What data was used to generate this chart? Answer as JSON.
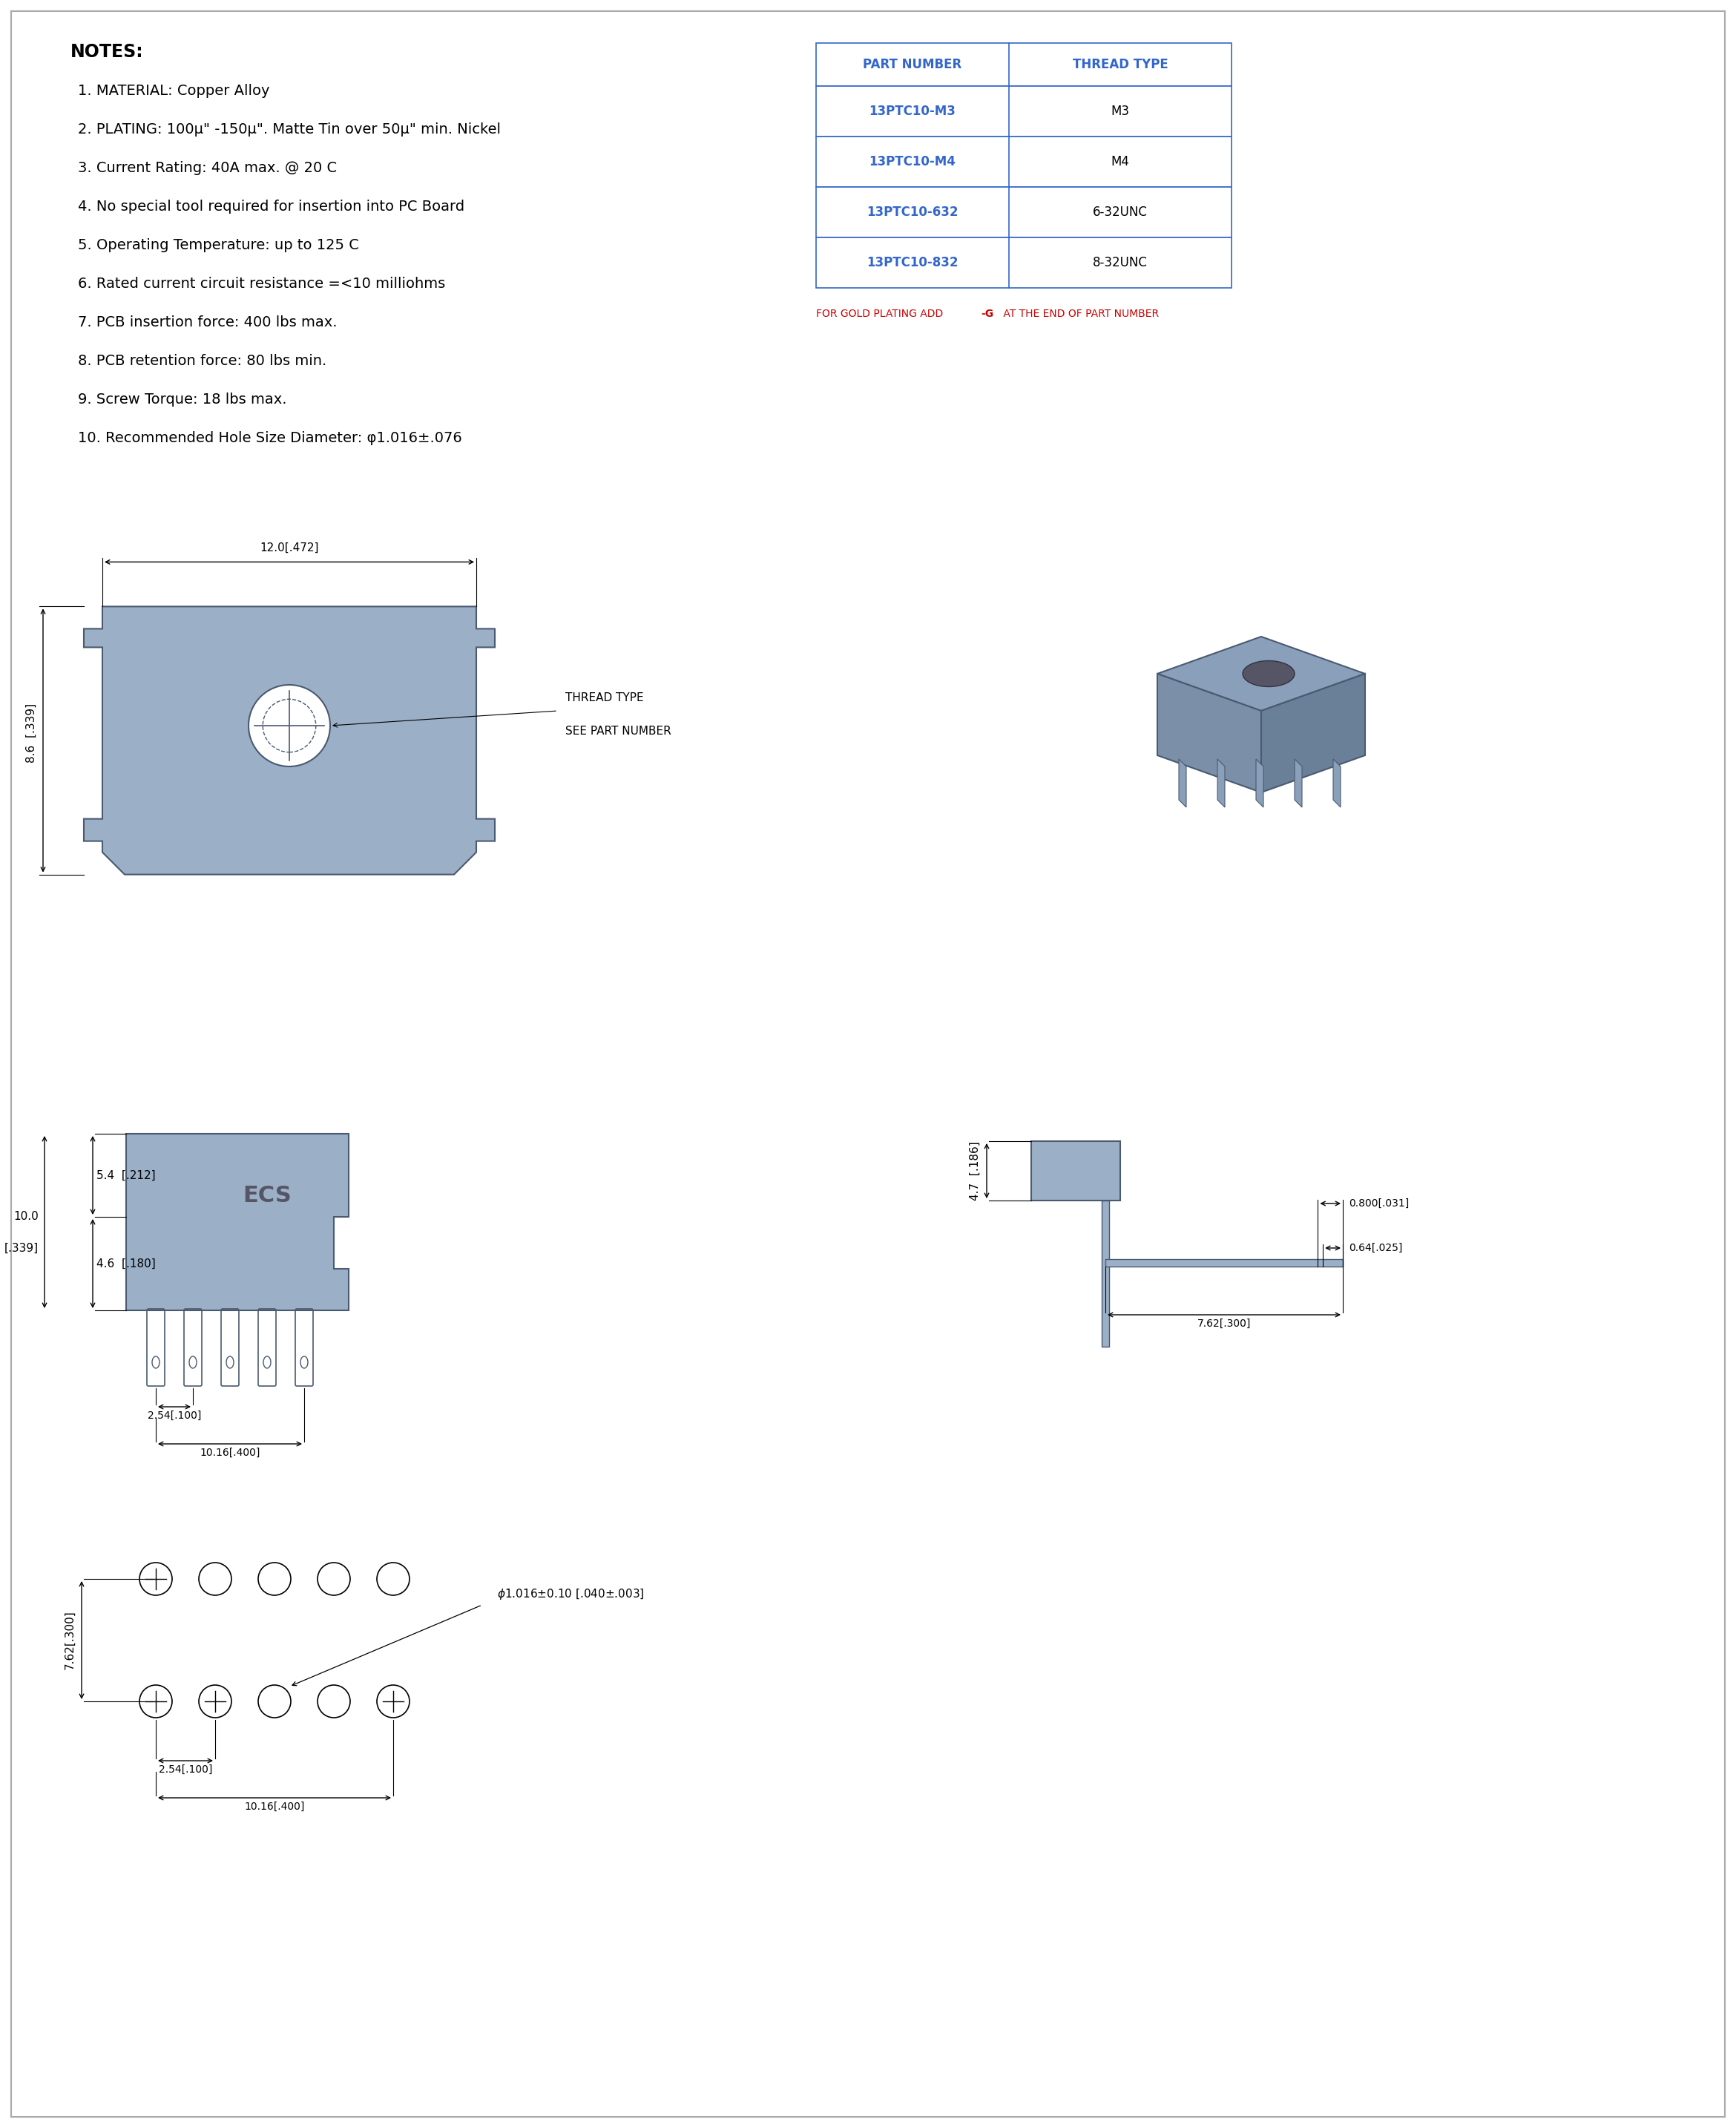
{
  "bg_color": "#ffffff",
  "notes_title": "NOTES:",
  "notes_lines": [
    "1. MATERIAL: Copper Alloy",
    "2. PLATING: 100μ\" -150μ\". Matte Tin over 50μ\" min. Nickel",
    "3. Current Rating: 40A max. @ 20 C",
    "4. No special tool required for insertion into PC Board",
    "5. Operating Temperature: up to 125 C",
    "6. Rated current circuit resistance =<10 milliohms",
    "7. PCB insertion force: 400 lbs max.",
    "8. PCB retention force: 80 lbs min.",
    "9. Screw Torque: 18 lbs max.",
    "10. Recommended Hole Size Diameter: φ1.016±.076"
  ],
  "table_header": [
    "PART NUMBER",
    "THREAD TYPE"
  ],
  "table_rows": [
    [
      "13PTC10-M3",
      "M3"
    ],
    [
      "13PTC10-M4",
      "M4"
    ],
    [
      "13PTC10-632",
      "6-32UNC"
    ],
    [
      "13PTC10-832",
      "8-32UNC"
    ]
  ],
  "table_note": "FOR GOLD PLATING ADD -G AT THE END OF PART NUMBER",
  "part_color": "#7b96b8",
  "dim_color": "#000000",
  "table_header_color": "#3366cc",
  "table_partnum_color": "#3366cc",
  "body_color": "#9bafc7"
}
